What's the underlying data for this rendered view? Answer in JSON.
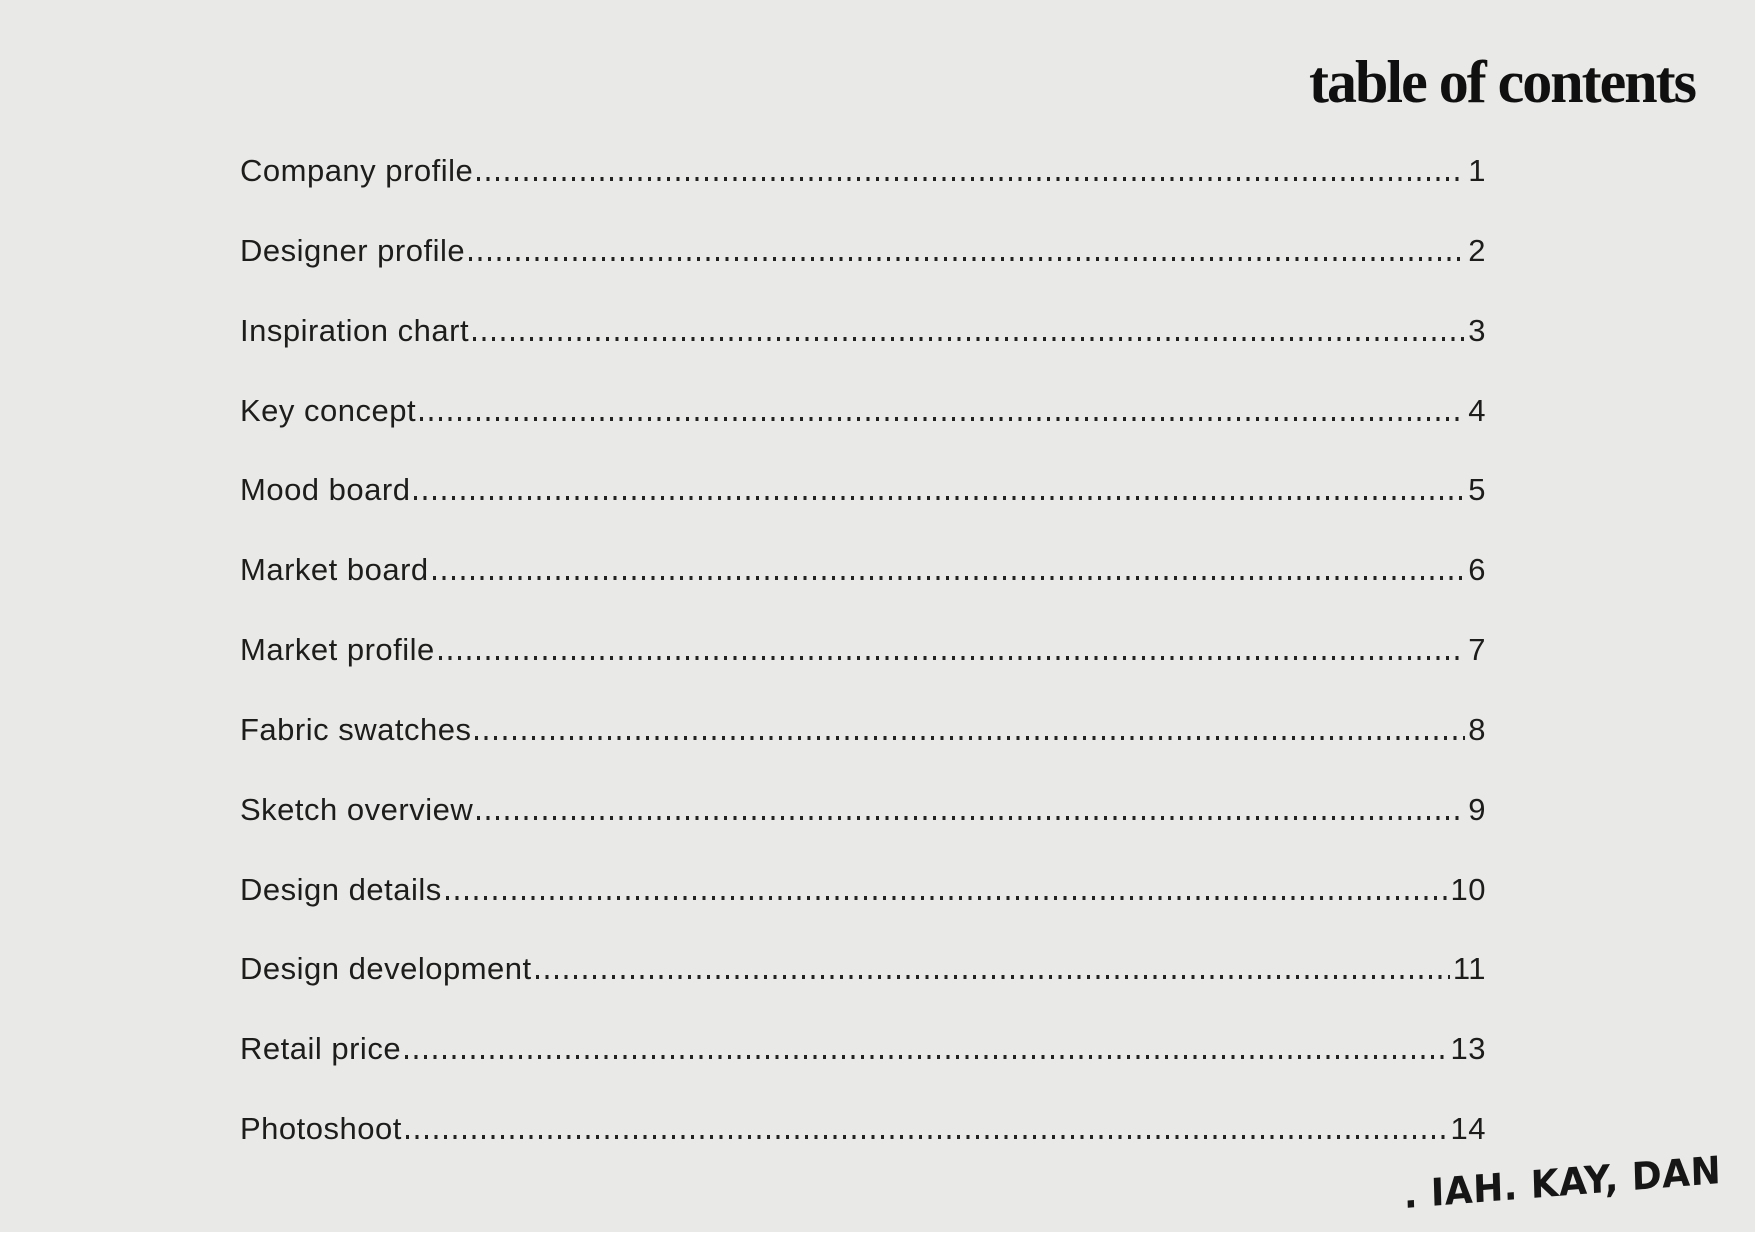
{
  "page": {
    "title": "table of contents",
    "background_color": "#e9e9e7",
    "text_color": "#1d1d1c",
    "title_color": "#101010"
  },
  "toc": {
    "entries": [
      {
        "label": "Company profile",
        "page": "1"
      },
      {
        "label": "Designer profile",
        "page": "2"
      },
      {
        "label": "Inspiration chart",
        "page": "3"
      },
      {
        "label": "Key concept",
        "page": "4"
      },
      {
        "label": "Mood board",
        "page": "5"
      },
      {
        "label": "Market board",
        "page": "6"
      },
      {
        "label": "Market profile",
        "page": "7"
      },
      {
        "label": "Fabric swatches",
        "page": "8"
      },
      {
        "label": "Sketch overview",
        "page": "9"
      },
      {
        "label": "Design details",
        "page": "10"
      },
      {
        "label": "Design development",
        "page": "11"
      },
      {
        "label": "Retail price",
        "page": "13"
      },
      {
        "label": "Photoshoot",
        "page": "14"
      }
    ]
  },
  "signature": {
    "text": ". IAH. KAY, DAN"
  }
}
